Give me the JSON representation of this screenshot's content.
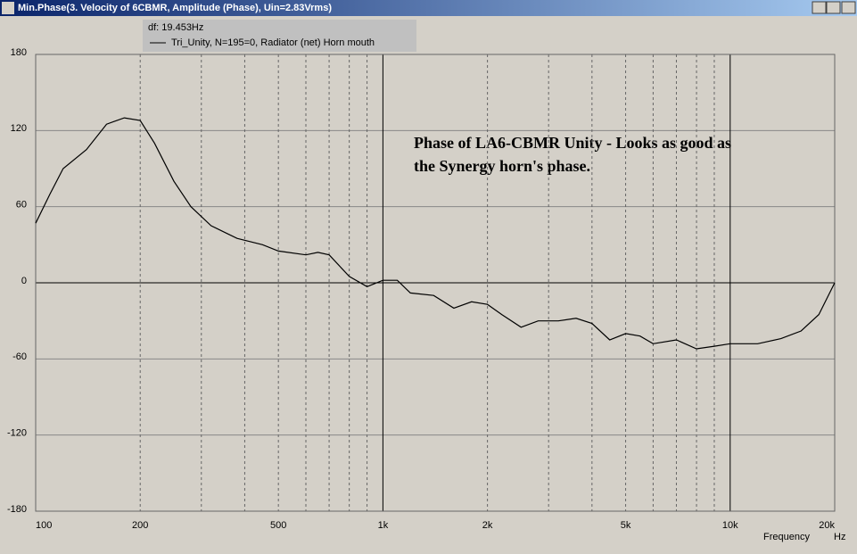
{
  "chart_data": {
    "type": "line",
    "title": "Min.Phase(3. Velocity of 6CBMR, Amplitude (Phase), Uin=2.83Vrms)",
    "legend_header": "df: 19.453Hz",
    "annotation": [
      "Phase of LA6-CBMR Unity - Looks as good as",
      "the Synergy horn's phase."
    ],
    "xlabel": "Frequency",
    "xunit": "Hz",
    "xscale": "log",
    "x": [
      100,
      110,
      120,
      140,
      160,
      180,
      200,
      220,
      250,
      280,
      320,
      380,
      450,
      500,
      600,
      650,
      700,
      800,
      900,
      1000,
      1100,
      1200,
      1400,
      1600,
      1800,
      2000,
      2200,
      2500,
      2800,
      3200,
      3600,
      4000,
      4500,
      5000,
      5500,
      6000,
      7000,
      8000,
      9000,
      10000,
      12000,
      14000,
      16000,
      18000,
      20000
    ],
    "series": [
      {
        "name": "Tri_Unity, N=195=0, Radiator (net) Horn mouth",
        "color": "#000000",
        "values": [
          47,
          70,
          90,
          105,
          125,
          130,
          128,
          110,
          80,
          60,
          45,
          35,
          30,
          25,
          22,
          24,
          22,
          5,
          -3,
          2,
          2,
          -8,
          -10,
          -20,
          -15,
          -17,
          -25,
          -35,
          -30,
          -30,
          -28,
          -32,
          -45,
          -40,
          -42,
          -48,
          -45,
          -52,
          -50,
          -48,
          -48,
          -44,
          -38,
          -25,
          0
        ]
      }
    ],
    "xlim": [
      100,
      20000
    ],
    "ylim": [
      -180,
      180
    ],
    "xticks": [
      100,
      200,
      500,
      {
        "value": 1000,
        "label": "1k"
      },
      {
        "value": 2000,
        "label": "2k"
      },
      {
        "value": 5000,
        "label": "5k"
      },
      {
        "value": 10000,
        "label": "10k"
      },
      {
        "value": 20000,
        "label": "20k"
      }
    ],
    "xminor": [
      300,
      400,
      600,
      700,
      800,
      900,
      3000,
      4000,
      6000,
      7000,
      8000,
      9000
    ],
    "xmajor": [
      1000,
      10000
    ],
    "yticks": [
      180,
      120,
      60,
      0,
      -60,
      -120,
      -180
    ],
    "grid": true
  }
}
